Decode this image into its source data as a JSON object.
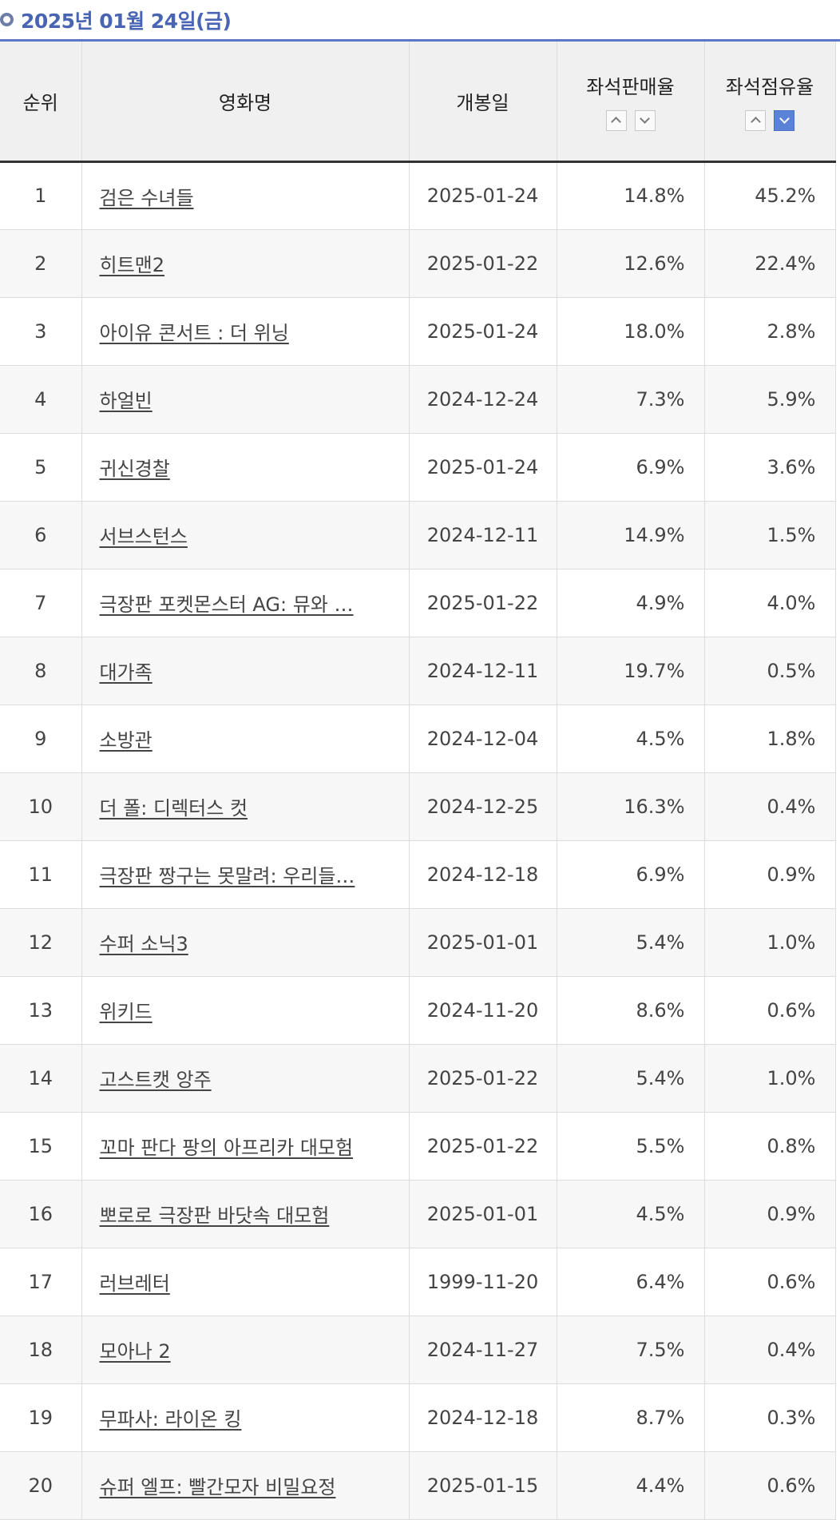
{
  "date_header": "2025년 01월 24일(금)",
  "table": {
    "headers": {
      "rank": "순위",
      "title": "영화명",
      "release": "개봉일",
      "sales_rate": "좌석판매율",
      "occupancy": "좌석점유율"
    },
    "rows": [
      {
        "rank": "1",
        "title": "검은 수녀들",
        "release": "2025-01-24",
        "sales_rate": "14.8%",
        "occupancy": "45.2%"
      },
      {
        "rank": "2",
        "title": "히트맨2",
        "release": "2025-01-22",
        "sales_rate": "12.6%",
        "occupancy": "22.4%"
      },
      {
        "rank": "3",
        "title": "아이유 콘서트 : 더 위닝",
        "release": "2025-01-24",
        "sales_rate": "18.0%",
        "occupancy": "2.8%"
      },
      {
        "rank": "4",
        "title": "하얼빈",
        "release": "2024-12-24",
        "sales_rate": "7.3%",
        "occupancy": "5.9%"
      },
      {
        "rank": "5",
        "title": "귀신경찰",
        "release": "2025-01-24",
        "sales_rate": "6.9%",
        "occupancy": "3.6%"
      },
      {
        "rank": "6",
        "title": "서브스턴스",
        "release": "2024-12-11",
        "sales_rate": "14.9%",
        "occupancy": "1.5%"
      },
      {
        "rank": "7",
        "title": "극장판 포켓몬스터 AG: 뮤와 …",
        "release": "2025-01-22",
        "sales_rate": "4.9%",
        "occupancy": "4.0%"
      },
      {
        "rank": "8",
        "title": "대가족",
        "release": "2024-12-11",
        "sales_rate": "19.7%",
        "occupancy": "0.5%"
      },
      {
        "rank": "9",
        "title": "소방관",
        "release": "2024-12-04",
        "sales_rate": "4.5%",
        "occupancy": "1.8%"
      },
      {
        "rank": "10",
        "title": "더 폴: 디렉터스 컷",
        "release": "2024-12-25",
        "sales_rate": "16.3%",
        "occupancy": "0.4%"
      },
      {
        "rank": "11",
        "title": "극장판 짱구는 못말려: 우리들…",
        "release": "2024-12-18",
        "sales_rate": "6.9%",
        "occupancy": "0.9%"
      },
      {
        "rank": "12",
        "title": "수퍼 소닉3",
        "release": "2025-01-01",
        "sales_rate": "5.4%",
        "occupancy": "1.0%"
      },
      {
        "rank": "13",
        "title": "위키드",
        "release": "2024-11-20",
        "sales_rate": "8.6%",
        "occupancy": "0.6%"
      },
      {
        "rank": "14",
        "title": "고스트캣 앙주",
        "release": "2025-01-22",
        "sales_rate": "5.4%",
        "occupancy": "1.0%"
      },
      {
        "rank": "15",
        "title": "꼬마 판다 팡의 아프리카 대모험",
        "release": "2025-01-22",
        "sales_rate": "5.5%",
        "occupancy": "0.8%"
      },
      {
        "rank": "16",
        "title": "뽀로로 극장판 바닷속 대모험",
        "release": "2025-01-01",
        "sales_rate": "4.5%",
        "occupancy": "0.9%"
      },
      {
        "rank": "17",
        "title": "러브레터",
        "release": "1999-11-20",
        "sales_rate": "6.4%",
        "occupancy": "0.6%"
      },
      {
        "rank": "18",
        "title": "모아나 2",
        "release": "2024-11-27",
        "sales_rate": "7.5%",
        "occupancy": "0.4%"
      },
      {
        "rank": "19",
        "title": "무파사: 라이온 킹",
        "release": "2024-12-18",
        "sales_rate": "8.7%",
        "occupancy": "0.3%"
      },
      {
        "rank": "20",
        "title": "슈퍼 엘프: 빨간모자 비밀요정",
        "release": "2025-01-15",
        "sales_rate": "4.4%",
        "occupancy": "0.6%"
      }
    ]
  },
  "sort": {
    "sales_rate": {
      "up_icon": "chevron-up-icon",
      "down_icon": "chevron-down-icon",
      "active": "none"
    },
    "occupancy": {
      "up_icon": "chevron-up-icon",
      "down_icon": "chevron-down-icon",
      "active": "down"
    }
  },
  "colors": {
    "accent": "#5a78c8",
    "active_sort": "#5a82d6"
  }
}
